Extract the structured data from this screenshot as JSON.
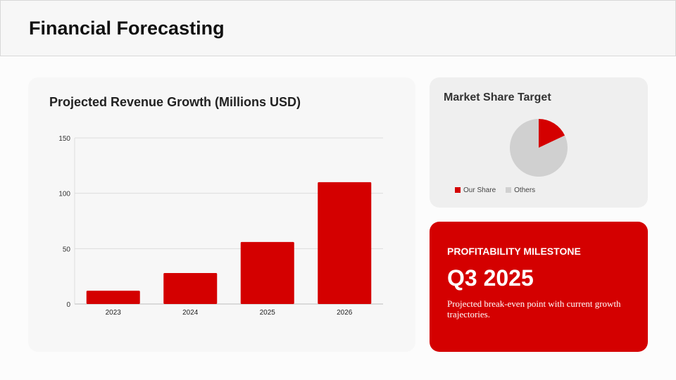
{
  "header": {
    "title": "Financial Forecasting"
  },
  "revenue_card": {
    "title": "Projected Revenue Growth (Millions USD)"
  },
  "market_card": {
    "title": "Market Share Target"
  },
  "milestone": {
    "label": "PROFITABILITY MILESTONE",
    "value": "Q3 2025",
    "description": "Projected break-even point with current growth trajectories."
  },
  "colors": {
    "accent": "#d40000",
    "others": "#d0d0d0"
  },
  "chart_data": [
    {
      "type": "bar",
      "title": "Projected Revenue Growth (Millions USD)",
      "categories": [
        "2023",
        "2024",
        "2025",
        "2026"
      ],
      "values": [
        12,
        28,
        56,
        110
      ],
      "ylim": [
        0,
        150
      ],
      "yticks": [
        "0",
        "50",
        "100",
        "150"
      ],
      "grid": true
    },
    {
      "type": "pie",
      "title": "Market Share Target",
      "labels": [
        "Our Share",
        "Others"
      ],
      "values": [
        18,
        82
      ],
      "colors": [
        "#d40000",
        "#d0d0d0"
      ],
      "legend": "bottom"
    }
  ]
}
